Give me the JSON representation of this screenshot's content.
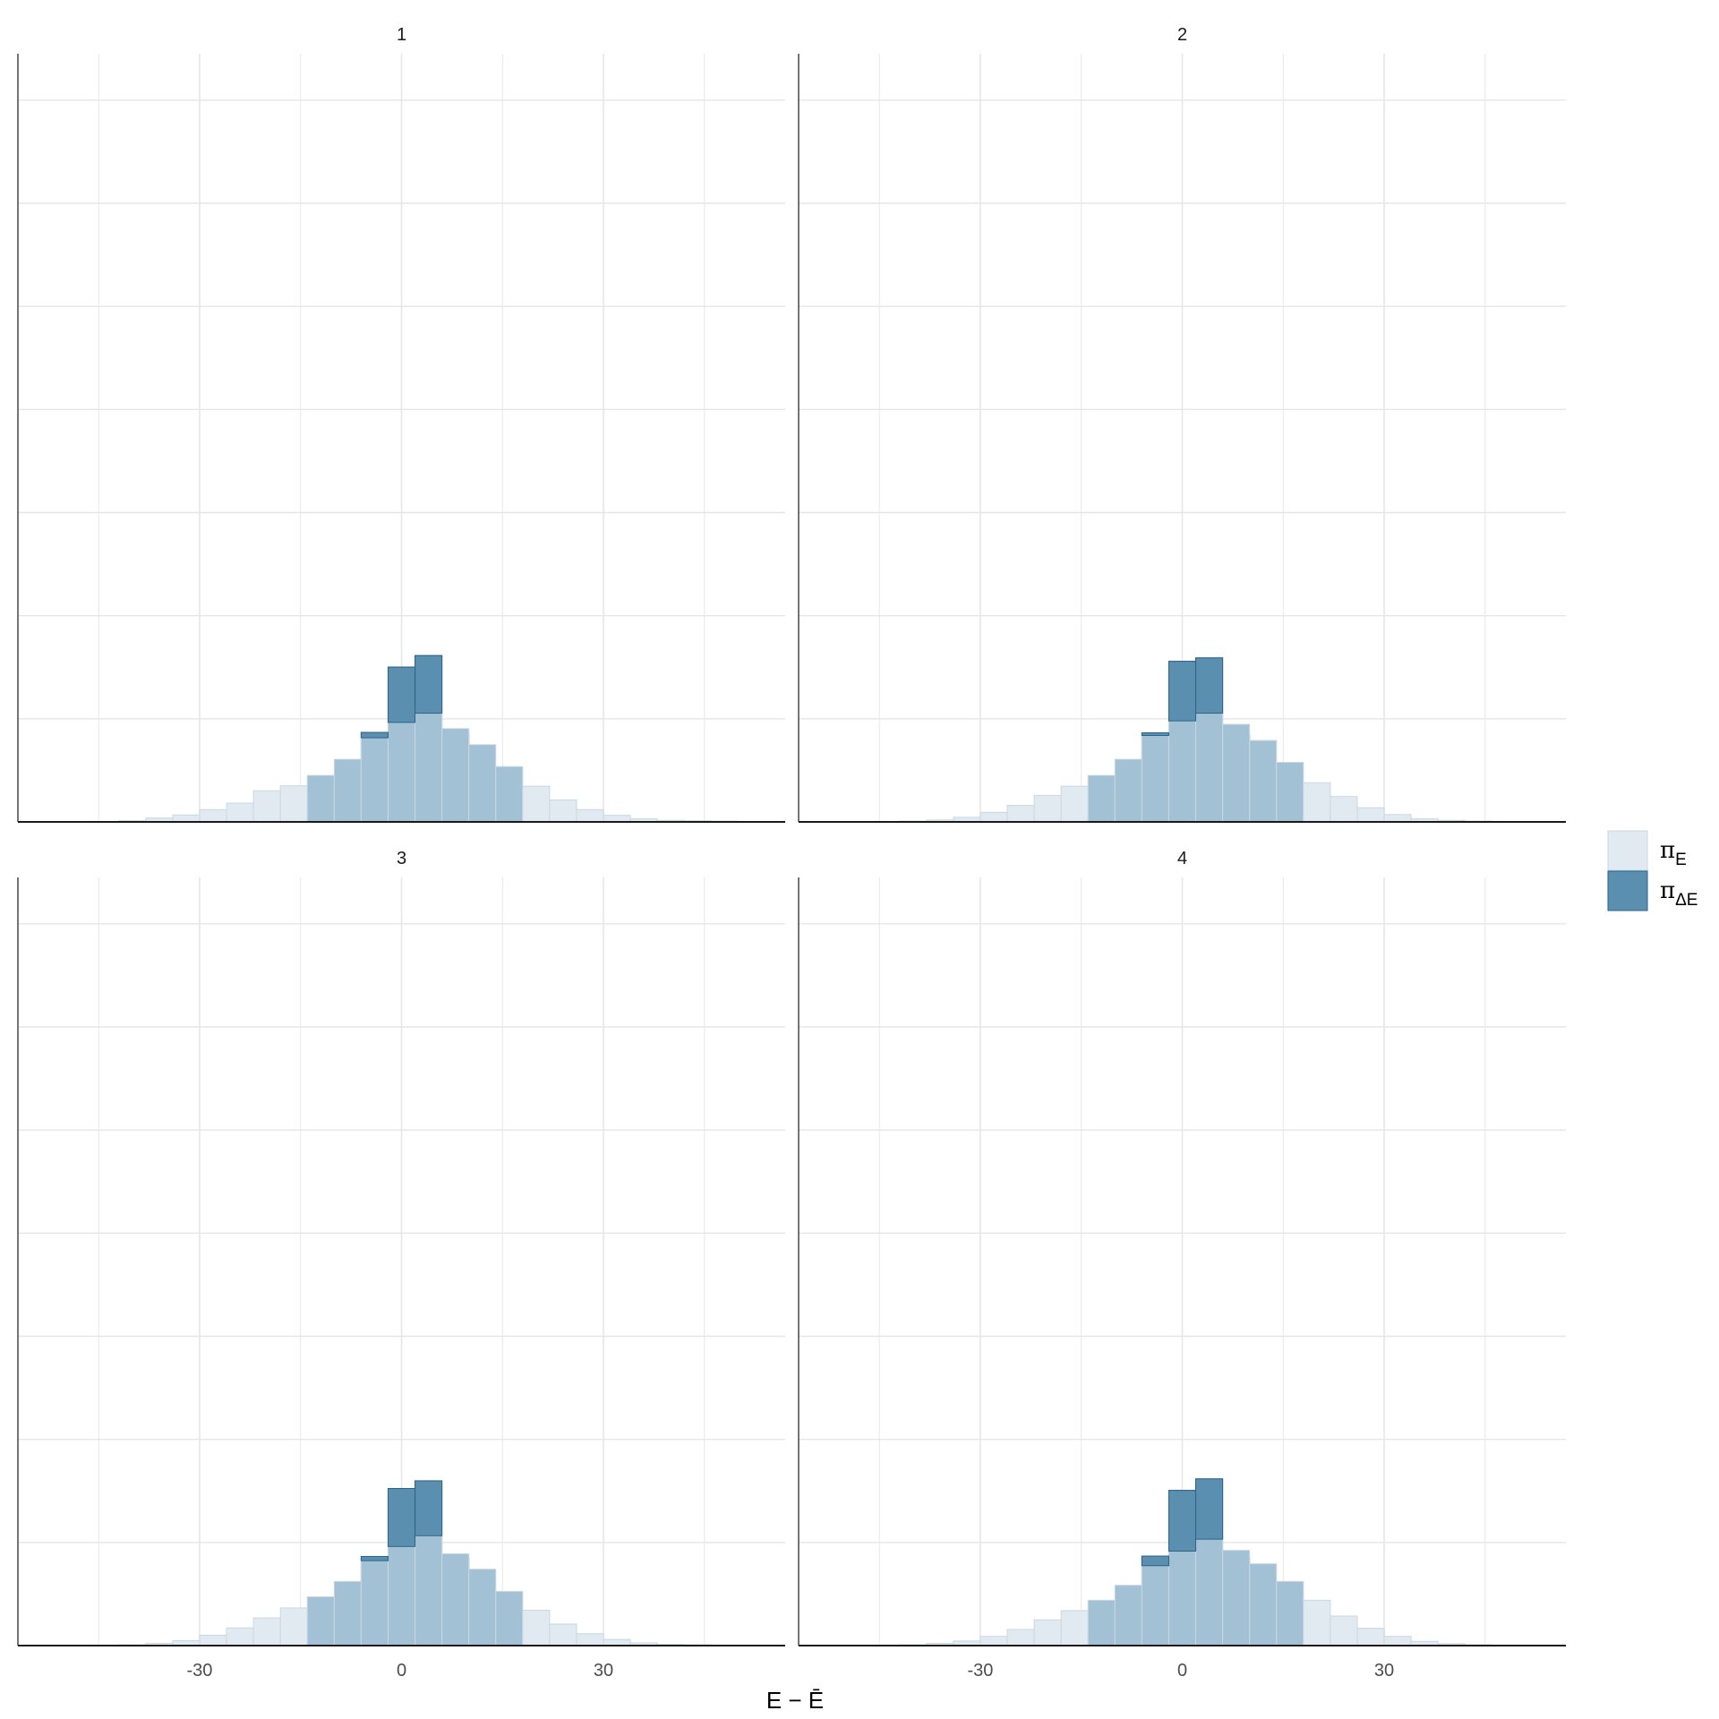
{
  "chart_data": [
    {
      "type": "bar",
      "title": "1",
      "bin_width": 4,
      "xlim": [
        -57,
        57
      ],
      "ylim": [
        0,
        0.2
      ],
      "x_ticks": [],
      "series": [
        {
          "name": "π_E",
          "bins": [
            [
              -40,
              0.0003
            ],
            [
              -36,
              0.001
            ],
            [
              -32,
              0.0018
            ],
            [
              -28,
              0.0032
            ],
            [
              -24,
              0.0049
            ],
            [
              -20,
              0.0081
            ],
            [
              -16,
              0.0094
            ],
            [
              -12,
              0.0121
            ],
            [
              -8,
              0.0163
            ],
            [
              -4,
              0.0219
            ],
            [
              0,
              0.0259
            ],
            [
              4,
              0.0283
            ],
            [
              8,
              0.0243
            ],
            [
              12,
              0.0201
            ],
            [
              16,
              0.0144
            ],
            [
              20,
              0.0093
            ],
            [
              24,
              0.0057
            ],
            [
              28,
              0.0032
            ],
            [
              32,
              0.0017
            ],
            [
              36,
              0.0008
            ],
            [
              40,
              0.0004
            ],
            [
              44,
              0.0003
            ],
            [
              48,
              0.0002
            ],
            [
              52,
              0.0001
            ]
          ]
        },
        {
          "name": "π_ΔE",
          "bins": [
            [
              -16,
              0.0003
            ],
            [
              -12,
              0.0009
            ],
            [
              -8,
              0.0099
            ],
            [
              -4,
              0.0233
            ],
            [
              0,
              0.0403
            ],
            [
              4,
              0.0433
            ],
            [
              8,
              0.0231
            ],
            [
              12,
              0.0096
            ],
            [
              16,
              0.0008
            ],
            [
              20,
              0.0002
            ]
          ]
        }
      ]
    },
    {
      "type": "bar",
      "title": "2",
      "bin_width": 4,
      "xlim": [
        -57,
        57
      ],
      "ylim": [
        0,
        0.2
      ],
      "x_ticks": [],
      "series": [
        {
          "name": "π_E",
          "bins": [
            [
              -40,
              0.0002
            ],
            [
              -36,
              0.0005
            ],
            [
              -32,
              0.0012
            ],
            [
              -28,
              0.0025
            ],
            [
              -24,
              0.0043
            ],
            [
              -20,
              0.0069
            ],
            [
              -16,
              0.0093
            ],
            [
              -12,
              0.0121
            ],
            [
              -8,
              0.0163
            ],
            [
              -4,
              0.0225
            ],
            [
              0,
              0.0263
            ],
            [
              4,
              0.0283
            ],
            [
              8,
              0.0254
            ],
            [
              12,
              0.0212
            ],
            [
              16,
              0.0155
            ],
            [
              20,
              0.0102
            ],
            [
              24,
              0.0066
            ],
            [
              28,
              0.0037
            ],
            [
              32,
              0.0019
            ],
            [
              36,
              0.0008
            ],
            [
              40,
              0.0004
            ],
            [
              44,
              0.0002
            ],
            [
              48,
              0.0001
            ]
          ]
        },
        {
          "name": "π_ΔE",
          "bins": [
            [
              -16,
              0.0002
            ],
            [
              -12,
              0.0007
            ],
            [
              -8,
              0.0094
            ],
            [
              -4,
              0.0232
            ],
            [
              0,
              0.0418
            ],
            [
              4,
              0.0427
            ],
            [
              8,
              0.0228
            ],
            [
              12,
              0.0098
            ],
            [
              16,
              0.0007
            ],
            [
              20,
              0.0002
            ]
          ]
        }
      ]
    },
    {
      "type": "bar",
      "title": "3",
      "bin_width": 4,
      "xlim": [
        -57,
        57
      ],
      "ylim": [
        0,
        0.2
      ],
      "x_ticks": [
        -30,
        0,
        30
      ],
      "series": [
        {
          "name": "π_E",
          "bins": [
            [
              -40,
              0.0002
            ],
            [
              -36,
              0.0006
            ],
            [
              -32,
              0.0013
            ],
            [
              -28,
              0.0027
            ],
            [
              -24,
              0.0046
            ],
            [
              -20,
              0.0072
            ],
            [
              -16,
              0.0098
            ],
            [
              -12,
              0.0127
            ],
            [
              -8,
              0.0167
            ],
            [
              -4,
              0.0221
            ],
            [
              0,
              0.0258
            ],
            [
              4,
              0.0286
            ],
            [
              8,
              0.0239
            ],
            [
              12,
              0.0199
            ],
            [
              16,
              0.0141
            ],
            [
              20,
              0.0092
            ],
            [
              24,
              0.0056
            ],
            [
              28,
              0.0031
            ],
            [
              32,
              0.0016
            ],
            [
              36,
              0.0007
            ],
            [
              40,
              0.0003
            ],
            [
              44,
              0.0002
            ],
            [
              48,
              0.0001
            ]
          ]
        },
        {
          "name": "π_ΔE",
          "bins": [
            [
              -16,
              0.0003
            ],
            [
              -12,
              0.0009
            ],
            [
              -8,
              0.0099
            ],
            [
              -4,
              0.0232
            ],
            [
              0,
              0.0409
            ],
            [
              4,
              0.0429
            ],
            [
              8,
              0.0229
            ],
            [
              12,
              0.0097
            ],
            [
              16,
              0.0008
            ],
            [
              20,
              0.0002
            ]
          ]
        }
      ]
    },
    {
      "type": "bar",
      "title": "4",
      "bin_width": 4,
      "xlim": [
        -57,
        57
      ],
      "ylim": [
        0,
        0.2
      ],
      "x_ticks": [
        -30,
        0,
        30
      ],
      "series": [
        {
          "name": "π_E",
          "bins": [
            [
              -40,
              0.0002
            ],
            [
              -36,
              0.0006
            ],
            [
              -32,
              0.0012
            ],
            [
              -28,
              0.0024
            ],
            [
              -24,
              0.0042
            ],
            [
              -20,
              0.0067
            ],
            [
              -16,
              0.0091
            ],
            [
              -12,
              0.0118
            ],
            [
              -8,
              0.0157
            ],
            [
              -4,
              0.0208
            ],
            [
              0,
              0.0246
            ],
            [
              4,
              0.0277
            ],
            [
              8,
              0.0248
            ],
            [
              12,
              0.0213
            ],
            [
              16,
              0.0167
            ],
            [
              20,
              0.0118
            ],
            [
              24,
              0.0077
            ],
            [
              28,
              0.0045
            ],
            [
              32,
              0.0024
            ],
            [
              36,
              0.0011
            ],
            [
              40,
              0.0005
            ],
            [
              44,
              0.0002
            ],
            [
              48,
              0.0001
            ]
          ]
        },
        {
          "name": "π_ΔE",
          "bins": [
            [
              -16,
              0.0003
            ],
            [
              -12,
              0.0009
            ],
            [
              -8,
              0.0097
            ],
            [
              -4,
              0.0233
            ],
            [
              0,
              0.0404
            ],
            [
              4,
              0.0434
            ],
            [
              8,
              0.0229
            ],
            [
              12,
              0.0098
            ],
            [
              16,
              0.0008
            ],
            [
              20,
              0.0002
            ]
          ]
        }
      ]
    }
  ],
  "xlabel": "E − Ē",
  "legend": {
    "placement": "right",
    "items": [
      {
        "symbol": "π",
        "subscript": "E",
        "fill": "#e2eaf1",
        "stroke": "#c9d7e4"
      },
      {
        "symbol": "π",
        "subscript": "ΔE",
        "fill": "#5a8fb0",
        "stroke": "#2a6389"
      }
    ]
  },
  "colors": {
    "grid": "#e6e6e6",
    "axis": "#1a1a1a",
    "overlap": "#a3c1d4"
  }
}
